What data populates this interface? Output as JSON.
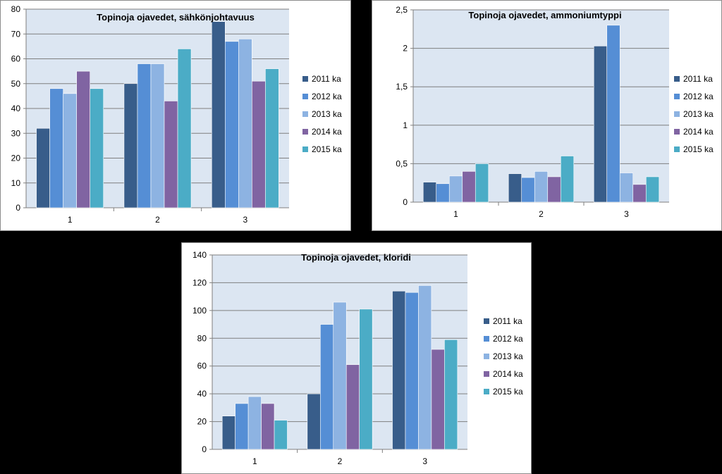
{
  "chart_data": [
    {
      "type": "bar",
      "title": "Topinoja ojavedet, sähkönjohtavuus",
      "categories": [
        "1",
        "2",
        "3"
      ],
      "ylim": [
        0,
        80
      ],
      "yticks": [
        "0",
        "10",
        "20",
        "30",
        "40",
        "50",
        "60",
        "70",
        "80"
      ],
      "grid": true,
      "legend": "right",
      "series": [
        {
          "name": "2011 ka",
          "color": "#385d8a",
          "values": [
            32,
            50,
            75
          ]
        },
        {
          "name": "2012 ka",
          "color": "#558ed5",
          "values": [
            48,
            58,
            67
          ]
        },
        {
          "name": "2013 ka",
          "color": "#8db3e2",
          "values": [
            46,
            58,
            68
          ]
        },
        {
          "name": "2014 ka",
          "color": "#8064a2",
          "values": [
            55,
            43,
            51
          ]
        },
        {
          "name": "2015 ka",
          "color": "#4bacc6",
          "values": [
            48,
            64,
            56
          ]
        }
      ]
    },
    {
      "type": "bar",
      "title": "Topinoja ojavedet, ammoniumtyppi",
      "categories": [
        "1",
        "2",
        "3"
      ],
      "ylim": [
        0,
        2.5
      ],
      "yticks": [
        "0",
        "0,5",
        "1",
        "1,5",
        "2",
        "2,5"
      ],
      "grid": true,
      "legend": "right",
      "series": [
        {
          "name": "2011 ka",
          "color": "#385d8a",
          "values": [
            0.26,
            0.37,
            2.03
          ]
        },
        {
          "name": "2012 ka",
          "color": "#558ed5",
          "values": [
            0.24,
            0.32,
            2.3
          ]
        },
        {
          "name": "2013 ka",
          "color": "#8db3e2",
          "values": [
            0.34,
            0.4,
            0.38
          ]
        },
        {
          "name": "2014 ka",
          "color": "#8064a2",
          "values": [
            0.4,
            0.33,
            0.23
          ]
        },
        {
          "name": "2015 ka",
          "color": "#4bacc6",
          "values": [
            0.5,
            0.6,
            0.33
          ]
        }
      ]
    },
    {
      "type": "bar",
      "title": "Topinoja ojavedet, kloridi",
      "categories": [
        "1",
        "2",
        "3"
      ],
      "ylim": [
        0,
        140
      ],
      "yticks": [
        "0",
        "20",
        "40",
        "60",
        "80",
        "100",
        "120",
        "140"
      ],
      "grid": true,
      "legend": "right",
      "series": [
        {
          "name": "2011 ka",
          "color": "#385d8a",
          "values": [
            24,
            40,
            114
          ]
        },
        {
          "name": "2012 ka",
          "color": "#558ed5",
          "values": [
            33,
            90,
            113
          ]
        },
        {
          "name": "2013 ka",
          "color": "#8db3e2",
          "values": [
            38,
            106,
            118
          ]
        },
        {
          "name": "2014 ka",
          "color": "#8064a2",
          "values": [
            33,
            61,
            72
          ]
        },
        {
          "name": "2015 ka",
          "color": "#4bacc6",
          "values": [
            21,
            101,
            79
          ]
        }
      ]
    }
  ]
}
